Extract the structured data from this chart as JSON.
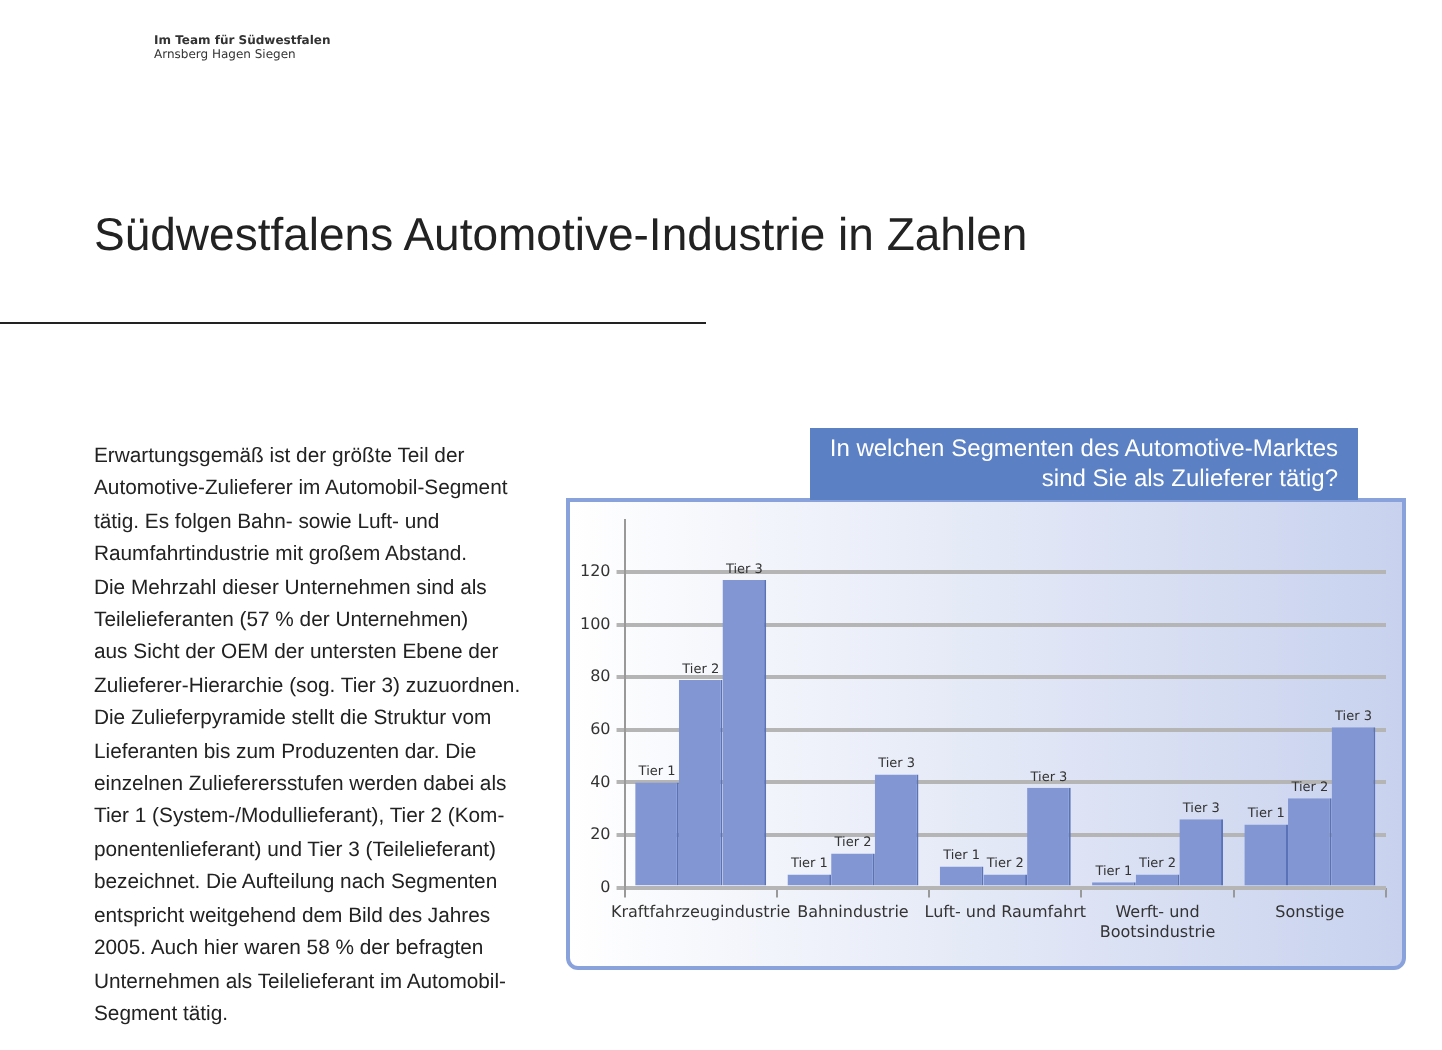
{
  "chart_data": {
    "type": "bar",
    "title": "In welchen Segmenten des Automotive-Marktes sind Sie als Zulieferer tätig?",
    "subtitle": "Südwestfalens Automotive-Industrie in Zahlen",
    "annotations": [
      "Im Team für Südwestfalen",
      "Arnsberg  Hagen  Siegen",
      "Erwartungsgemäß ist der größte Teil der\nAutomotive-Zulieferer im Automobil-Segment\ntätig. Es folgen Bahn- sowie Luft- und\nRaumfahrtindustrie mit großem Abstand.\nDie Mehrzahl dieser Unternehmen sind als\nTeilelieferanten (57 % der Unternehmen)\naus Sicht der OEM der untersten Ebene der\nZulieferer-Hierarchie (sog. Tier 3) zuzuordnen.\nDie Zulieferpyramide stellt die Struktur vom\nLieferanten bis zum Produzenten dar. Die\neinzelnen Zulieferersstufen werden dabei als\nTier 1 (System-/Modullieferant), Tier 2 (Kom-\nponentenlieferant) und Tier 3 (Teilelieferant)\nbezeichnet. Die Aufteilung nach Segmenten\nentspricht weitgehend dem Bild des Jahres\n2005. Auch hier waren 58 % der befragten\nUnternehmen als Teilelieferant im Automobil-\nSegment tätig."
    ],
    "categories": [
      "Kraftfahrzeugindustrie",
      "Bahnindustrie",
      "Luft- und Raumfahrt",
      "Werft- und Bootsindustrie",
      "Sonstige"
    ],
    "series": [
      {
        "name": "Tier 1",
        "color": "#8196d3",
        "values": [
          40,
          5,
          8,
          2,
          24
        ]
      },
      {
        "name": "Tier 2",
        "color": "#8196d3",
        "values": [
          79,
          13,
          5,
          5,
          34
        ]
      },
      {
        "name": "Tier 3",
        "color": "#8196d3",
        "values": [
          117,
          43,
          38,
          26,
          61
        ]
      }
    ],
    "ylim": [
      0,
      140
    ],
    "yticks": [
      0,
      20,
      40,
      60,
      80,
      100,
      120
    ],
    "grid": "y"
  }
}
